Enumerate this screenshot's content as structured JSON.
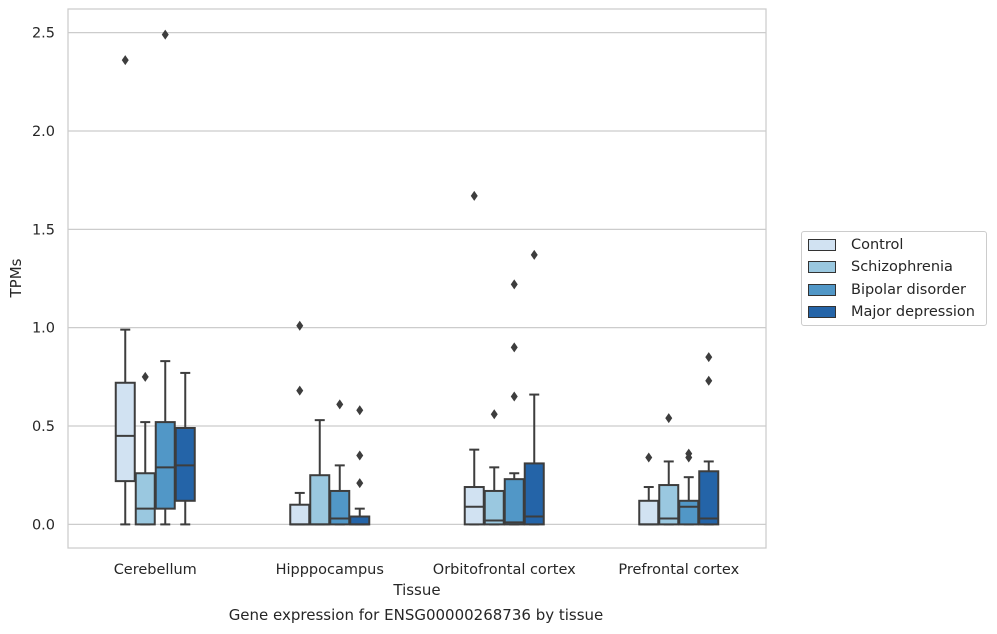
{
  "chart_data": {
    "type": "box",
    "title": "",
    "xlabel": "Tissue",
    "ylabel": "TPMs",
    "caption": "Gene expression for ENSG00000268736 by tissue",
    "categories": [
      "Cerebellum",
      "Hipppocampus",
      "Orbitofrontal cortex",
      "Prefrontal cortex"
    ],
    "ylim": [
      -0.12,
      2.62
    ],
    "yticks": [
      0.0,
      0.5,
      1.0,
      1.5,
      2.0,
      2.5
    ],
    "ytick_labels": [
      "0.0",
      "0.5",
      "1.0",
      "1.5",
      "2.0",
      "2.5"
    ],
    "grid": "horizontal",
    "legend_position": "right",
    "series": [
      {
        "name": "Control",
        "color": "#d1e2f2",
        "boxes": [
          {
            "whislo": 0.0,
            "q1": 0.22,
            "med": 0.45,
            "q3": 0.72,
            "whishi": 0.99,
            "fliers": [
              2.36
            ]
          },
          {
            "whislo": 0.0,
            "q1": 0.0,
            "med": 0.0,
            "q3": 0.1,
            "whishi": 0.16,
            "fliers": [
              1.01,
              0.68
            ]
          },
          {
            "whislo": 0.0,
            "q1": 0.0,
            "med": 0.09,
            "q3": 0.19,
            "whishi": 0.38,
            "fliers": [
              1.67
            ]
          },
          {
            "whislo": 0.0,
            "q1": 0.0,
            "med": 0.0,
            "q3": 0.12,
            "whishi": 0.19,
            "fliers": [
              0.34
            ]
          }
        ]
      },
      {
        "name": "Schizophrenia",
        "color": "#9ac8e0",
        "boxes": [
          {
            "whislo": 0.0,
            "q1": 0.0,
            "med": 0.08,
            "q3": 0.26,
            "whishi": 0.52,
            "fliers": [
              0.75
            ]
          },
          {
            "whislo": 0.0,
            "q1": 0.0,
            "med": 0.0,
            "q3": 0.25,
            "whishi": 0.53,
            "fliers": []
          },
          {
            "whislo": 0.0,
            "q1": 0.0,
            "med": 0.02,
            "q3": 0.17,
            "whishi": 0.29,
            "fliers": [
              0.56
            ]
          },
          {
            "whislo": 0.0,
            "q1": 0.0,
            "med": 0.03,
            "q3": 0.2,
            "whishi": 0.32,
            "fliers": [
              0.54
            ]
          }
        ]
      },
      {
        "name": "Bipolar disorder",
        "color": "#5197c7",
        "boxes": [
          {
            "whislo": 0.0,
            "q1": 0.08,
            "med": 0.29,
            "q3": 0.52,
            "whishi": 0.83,
            "fliers": [
              2.49
            ]
          },
          {
            "whislo": 0.0,
            "q1": 0.0,
            "med": 0.03,
            "q3": 0.17,
            "whishi": 0.3,
            "fliers": [
              0.61
            ]
          },
          {
            "whislo": 0.0,
            "q1": 0.0,
            "med": 0.01,
            "q3": 0.23,
            "whishi": 0.26,
            "fliers": [
              1.22,
              0.9,
              0.65
            ]
          },
          {
            "whislo": 0.0,
            "q1": 0.0,
            "med": 0.09,
            "q3": 0.12,
            "whishi": 0.24,
            "fliers": [
              0.36,
              0.34
            ]
          }
        ]
      },
      {
        "name": "Major depression",
        "color": "#2464a8",
        "boxes": [
          {
            "whislo": 0.0,
            "q1": 0.12,
            "med": 0.3,
            "q3": 0.49,
            "whishi": 0.77,
            "fliers": []
          },
          {
            "whislo": 0.0,
            "q1": 0.0,
            "med": 0.0,
            "q3": 0.04,
            "whishi": 0.08,
            "fliers": [
              0.58,
              0.35,
              0.21
            ]
          },
          {
            "whislo": 0.0,
            "q1": 0.0,
            "med": 0.04,
            "q3": 0.31,
            "whishi": 0.66,
            "fliers": [
              1.37
            ]
          },
          {
            "whislo": 0.0,
            "q1": 0.0,
            "med": 0.03,
            "q3": 0.27,
            "whishi": 0.32,
            "fliers": [
              0.85,
              0.73
            ]
          }
        ]
      }
    ]
  }
}
